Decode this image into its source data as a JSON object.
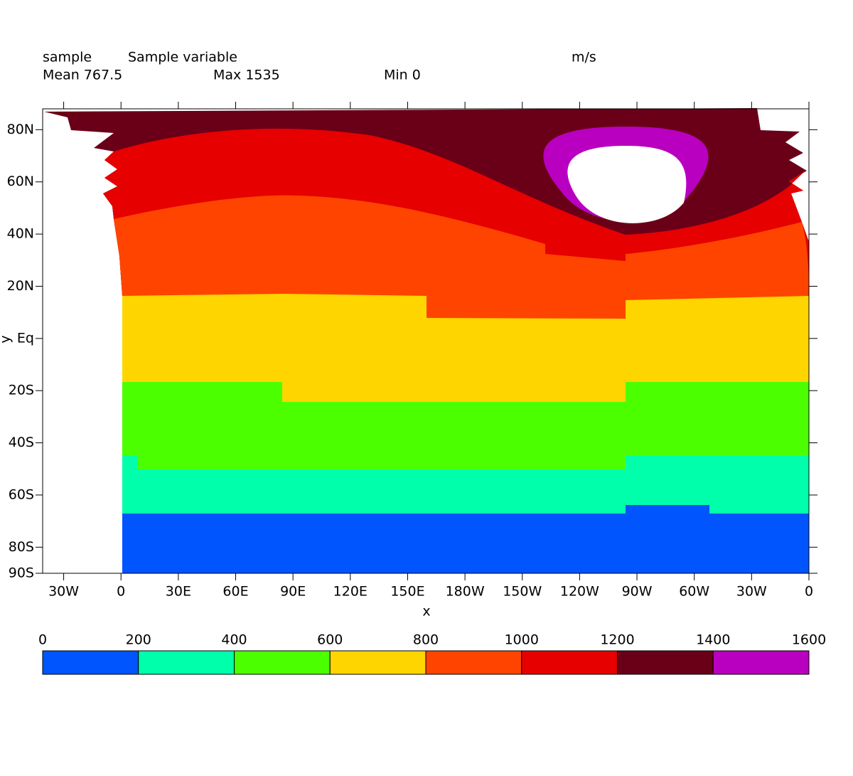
{
  "chart_data": {
    "type": "contourf",
    "header": {
      "name": "sample",
      "long_name": "Sample variable",
      "units": "m/s",
      "mean": "Mean 767.5",
      "max": "Max 1535",
      "min": "Min 0"
    },
    "x_label": "x",
    "y_label": "y",
    "xlim": [
      -41,
      360
    ],
    "xticks": [
      {
        "value": -30,
        "label": "30W"
      },
      0,
      {
        "value": 30,
        "label": "30E"
      },
      {
        "value": 60,
        "label": "60E"
      },
      {
        "value": 90,
        "label": "90E"
      },
      {
        "value": 120,
        "label": "120E"
      },
      {
        "value": 150,
        "label": "150E"
      },
      {
        "value": 180,
        "label": "180W"
      },
      {
        "value": 210,
        "label": "150W"
      },
      {
        "value": 240,
        "label": "120W"
      },
      {
        "value": 270,
        "label": "90W"
      },
      {
        "value": 300,
        "label": "60W"
      },
      {
        "value": 330,
        "label": "30W"
      },
      {
        "value": 360,
        "label": "0"
      }
    ],
    "ylim": [
      -90,
      88
    ],
    "yticks": [
      {
        "value": -90,
        "label": "90S"
      },
      {
        "value": -80,
        "label": "80S"
      },
      {
        "value": -60,
        "label": "60S"
      },
      {
        "value": -40,
        "label": "40S"
      },
      {
        "value": -20,
        "label": "20S"
      },
      {
        "value": 0,
        "label": "Eq"
      },
      {
        "value": 20,
        "label": "20N"
      },
      {
        "value": 40,
        "label": "40N"
      },
      {
        "value": 60,
        "label": "60N"
      },
      {
        "value": 80,
        "label": "80N"
      }
    ],
    "levels": [
      0,
      200,
      400,
      600,
      800,
      1000,
      1200,
      1400,
      1600
    ],
    "colors": [
      "#0055ff",
      "#00ffaa",
      "#4cff00",
      "#ffd500",
      "#ff4400",
      "#e60000",
      "#6a0018",
      "#b900c0"
    ]
  }
}
